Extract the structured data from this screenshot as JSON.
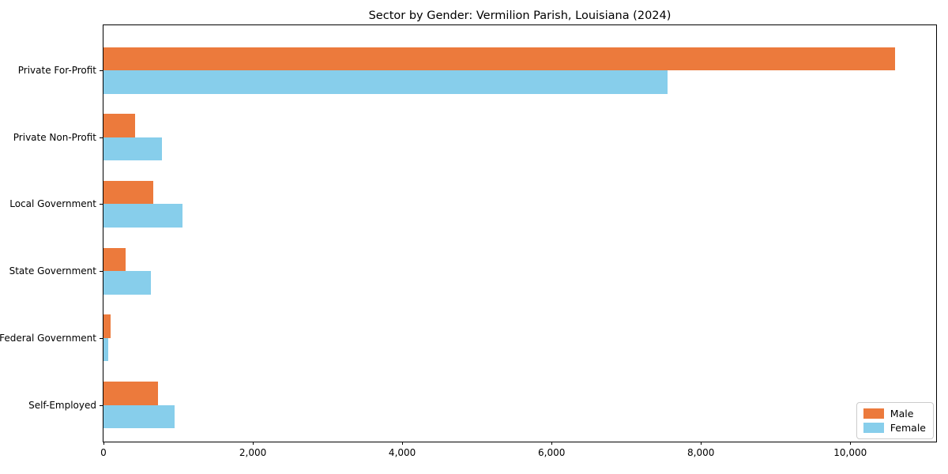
{
  "chart_data": {
    "type": "bar",
    "orientation": "horizontal",
    "title": "Sector by Gender: Vermilion Parish, Louisiana (2024)",
    "categories": [
      "Private For-Profit",
      "Private Non-Profit",
      "Local Government",
      "State Government",
      "Federal Government",
      "Self-Employed"
    ],
    "series": [
      {
        "name": "Male",
        "color": "#EC7A3C",
        "values": [
          10600,
          420,
          670,
          300,
          100,
          730
        ]
      },
      {
        "name": "Female",
        "color": "#87CEEB",
        "values": [
          7550,
          780,
          1060,
          630,
          60,
          950
        ]
      }
    ],
    "xlabel": "",
    "ylabel": "",
    "xlim": [
      0,
      11150
    ],
    "xticks": [
      0,
      2000,
      4000,
      6000,
      8000,
      10000
    ],
    "xtick_labels": [
      "0",
      "2,000",
      "4,000",
      "6,000",
      "8,000",
      "10,000"
    ],
    "grid": false,
    "legend_position": "lower right",
    "legend_labels": [
      "Male",
      "Female"
    ]
  }
}
